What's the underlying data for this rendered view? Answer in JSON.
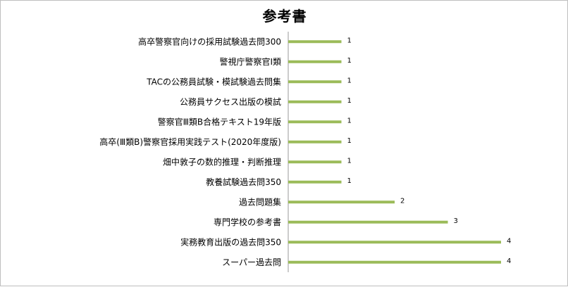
{
  "chart_data": {
    "type": "bar",
    "orientation": "horizontal",
    "title": "参考書",
    "categories": [
      "高卒警察官向けの採用試験過去問300",
      "警視庁警察官Ⅰ類",
      "TACの公務員試験・模試験過去問集",
      "公務員サクセス出版の模試",
      "警察官Ⅲ類B合格テキスト19年版",
      "高卒(Ⅲ類B)警察官採用実践テスト(2020年度版)",
      "畑中敦子の数的推理・判断推理",
      "教養試験過去問350",
      "過去問題集",
      "専門学校の参考書",
      "実務教育出版の過去問350",
      "スーパー過去問"
    ],
    "values": [
      1,
      1,
      1,
      1,
      1,
      1,
      1,
      1,
      2,
      3,
      4,
      4
    ],
    "xlim": [
      0,
      4
    ],
    "bar_color": "#9bbb59",
    "grid": false,
    "legend": "none",
    "data_labels": true
  }
}
